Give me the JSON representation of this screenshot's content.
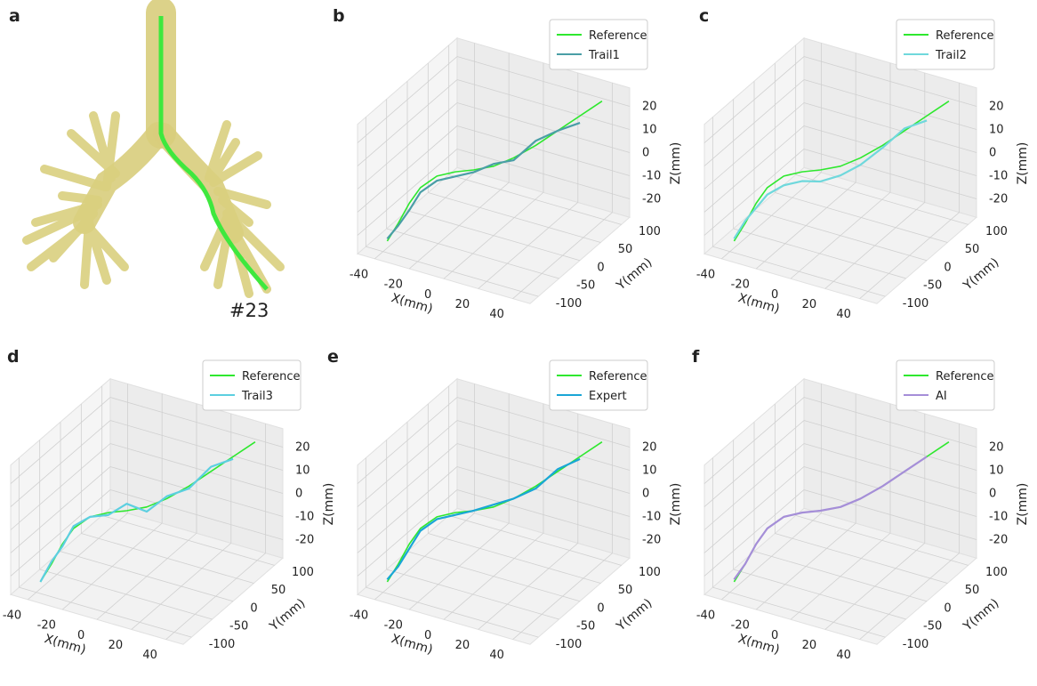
{
  "figure": {
    "panel_labels": [
      "a",
      "b",
      "c",
      "d",
      "e",
      "f"
    ],
    "specimen": "#23"
  },
  "chart_data": [
    {
      "type": "line3d",
      "xlabel": "X(mm)",
      "ylabel": "Y(mm)",
      "zlabel": "Z(mm)",
      "xlim": [
        -50,
        50
      ],
      "ylim": [
        -120,
        120
      ],
      "zlim": [
        -28,
        28
      ],
      "xticks": [
        -40,
        -20,
        0,
        20,
        40
      ],
      "yticks": [
        -100,
        -50,
        0,
        50,
        100
      ],
      "zticks": [
        -20,
        -10,
        0,
        10,
        20
      ],
      "legend": "upper right",
      "series": [
        {
          "name": "Reference",
          "color": "#2ee82e",
          "x": [
            -40,
            -36,
            -32,
            -28,
            -22,
            -15,
            -8,
            0,
            8,
            16,
            24,
            32,
            40
          ],
          "y": [
            -90,
            -80,
            -70,
            -60,
            -45,
            -30,
            -15,
            0,
            15,
            35,
            55,
            75,
            95
          ],
          "z": [
            -25,
            -18,
            -10,
            -4,
            0,
            1,
            1,
            2,
            5,
            9,
            14,
            19,
            24
          ]
        },
        {
          "name": "Trail1",
          "color": "#4a9ea6",
          "x": [
            -40,
            -36,
            -32,
            -28,
            -22,
            -15,
            -8,
            0,
            8,
            16,
            24,
            32
          ],
          "y": [
            -90,
            -80,
            -70,
            -60,
            -45,
            -30,
            -15,
            0,
            15,
            35,
            55,
            75
          ],
          "z": [
            -24,
            -19,
            -13,
            -6,
            -2,
            -1,
            0,
            3,
            4,
            11,
            14,
            16
          ]
        }
      ]
    },
    {
      "type": "line3d",
      "xlabel": "X(mm)",
      "ylabel": "Y(mm)",
      "zlabel": "Z(mm)",
      "xlim": [
        -50,
        50
      ],
      "ylim": [
        -120,
        120
      ],
      "zlim": [
        -28,
        28
      ],
      "xticks": [
        -40,
        -20,
        0,
        20,
        40
      ],
      "yticks": [
        -100,
        -50,
        0,
        50,
        100
      ],
      "zticks": [
        -20,
        -10,
        0,
        10,
        20
      ],
      "legend": "upper right",
      "series": [
        {
          "name": "Reference",
          "color": "#2ee82e",
          "x": [
            -40,
            -36,
            -32,
            -28,
            -22,
            -15,
            -8,
            0,
            8,
            16,
            24,
            32,
            40
          ],
          "y": [
            -90,
            -80,
            -70,
            -60,
            -45,
            -30,
            -15,
            0,
            15,
            35,
            55,
            75,
            95
          ],
          "z": [
            -25,
            -18,
            -10,
            -4,
            0,
            1,
            1,
            2,
            5,
            9,
            14,
            19,
            24
          ]
        },
        {
          "name": "Trail2",
          "color": "#6fd8dc",
          "x": [
            -40,
            -36,
            -32,
            -28,
            -22,
            -15,
            -8,
            0,
            8,
            16,
            24,
            32
          ],
          "y": [
            -90,
            -80,
            -70,
            -60,
            -45,
            -30,
            -15,
            0,
            15,
            35,
            55,
            75
          ],
          "z": [
            -24,
            -17,
            -12,
            -7,
            -4,
            -3,
            -4,
            -2,
            2,
            8,
            15,
            17
          ]
        }
      ]
    },
    {
      "type": "line3d",
      "xlabel": "X(mm)",
      "ylabel": "Y(mm)",
      "zlabel": "Z(mm)",
      "xlim": [
        -50,
        50
      ],
      "ylim": [
        -120,
        120
      ],
      "zlim": [
        -28,
        28
      ],
      "xticks": [
        -40,
        -20,
        0,
        20,
        40
      ],
      "yticks": [
        -100,
        -50,
        0,
        50,
        100
      ],
      "zticks": [
        -20,
        -10,
        0,
        10,
        20
      ],
      "legend": "upper right",
      "series": [
        {
          "name": "Reference",
          "color": "#2ee82e",
          "x": [
            -40,
            -36,
            -32,
            -28,
            -22,
            -15,
            -8,
            0,
            8,
            16,
            24,
            32,
            40
          ],
          "y": [
            -90,
            -80,
            -70,
            -60,
            -45,
            -30,
            -15,
            0,
            15,
            35,
            55,
            75,
            95
          ],
          "z": [
            -25,
            -18,
            -10,
            -4,
            0,
            1,
            1,
            2,
            5,
            9,
            14,
            19,
            24
          ]
        },
        {
          "name": "Trail3",
          "color": "#5ccfe0",
          "x": [
            -40,
            -36,
            -32,
            -28,
            -22,
            -15,
            -8,
            0,
            8,
            16,
            24,
            32
          ],
          "y": [
            -90,
            -80,
            -70,
            -60,
            -45,
            -30,
            -15,
            0,
            15,
            35,
            55,
            75
          ],
          "z": [
            -25,
            -17,
            -11,
            -3,
            0,
            0,
            4,
            0,
            6,
            8,
            16,
            18
          ]
        }
      ]
    },
    {
      "type": "line3d",
      "xlabel": "X(mm)",
      "ylabel": "Y(mm)",
      "zlabel": "Z(mm)",
      "xlim": [
        -50,
        50
      ],
      "ylim": [
        -120,
        120
      ],
      "zlim": [
        -28,
        28
      ],
      "xticks": [
        -40,
        -20,
        0,
        20,
        40
      ],
      "yticks": [
        -100,
        -50,
        0,
        50,
        100
      ],
      "zticks": [
        -20,
        -10,
        0,
        10,
        20
      ],
      "legend": "upper right",
      "series": [
        {
          "name": "Reference",
          "color": "#2ee82e",
          "x": [
            -40,
            -36,
            -32,
            -28,
            -22,
            -15,
            -8,
            0,
            8,
            16,
            24,
            32,
            40
          ],
          "y": [
            -90,
            -80,
            -70,
            -60,
            -45,
            -30,
            -15,
            0,
            15,
            35,
            55,
            75,
            95
          ],
          "z": [
            -25,
            -18,
            -10,
            -4,
            0,
            1,
            1,
            2,
            5,
            9,
            14,
            19,
            24
          ]
        },
        {
          "name": "Expert",
          "color": "#1aa6d6",
          "x": [
            -40,
            -36,
            -32,
            -28,
            -22,
            -15,
            -8,
            0,
            8,
            16,
            24,
            32
          ],
          "y": [
            -90,
            -80,
            -70,
            -60,
            -45,
            -30,
            -15,
            0,
            15,
            35,
            55,
            75
          ],
          "z": [
            -24,
            -19,
            -12,
            -5,
            -1,
            0,
            1,
            3,
            5,
            8,
            15,
            18
          ]
        }
      ]
    },
    {
      "type": "line3d",
      "xlabel": "X(mm)",
      "ylabel": "Y(mm)",
      "zlabel": "Z(mm)",
      "xlim": [
        -50,
        50
      ],
      "ylim": [
        -120,
        120
      ],
      "zlim": [
        -28,
        28
      ],
      "xticks": [
        -40,
        -20,
        0,
        20,
        40
      ],
      "yticks": [
        -100,
        -50,
        0,
        50,
        100
      ],
      "zticks": [
        -20,
        -10,
        0,
        10,
        20
      ],
      "legend": "upper right",
      "series": [
        {
          "name": "Reference",
          "color": "#2ee82e",
          "x": [
            -40,
            -36,
            -32,
            -28,
            -22,
            -15,
            -8,
            0,
            8,
            16,
            24,
            32,
            40
          ],
          "y": [
            -90,
            -80,
            -70,
            -60,
            -45,
            -30,
            -15,
            0,
            15,
            35,
            55,
            75,
            95
          ],
          "z": [
            -25,
            -18,
            -10,
            -4,
            0,
            1,
            1,
            2,
            5,
            9,
            14,
            19,
            24
          ]
        },
        {
          "name": "AI",
          "color": "#a58ed8",
          "x": [
            -40,
            -36,
            -32,
            -28,
            -22,
            -15,
            -8,
            0,
            8,
            16,
            24,
            32
          ],
          "y": [
            -90,
            -80,
            -70,
            -60,
            -45,
            -30,
            -15,
            0,
            15,
            35,
            55,
            75
          ],
          "z": [
            -24,
            -18,
            -10,
            -4,
            0,
            1,
            1,
            2,
            5,
            9,
            14,
            19
          ]
        }
      ]
    }
  ]
}
